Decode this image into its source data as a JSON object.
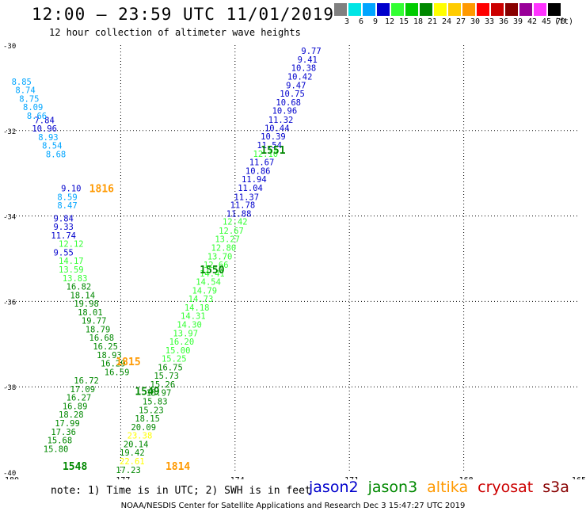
{
  "header": {
    "title": "12:00 – 23:59 UTC 11/01/2019",
    "subtitle": "12 hour collection of altimeter wave heights"
  },
  "legend": {
    "unit": "(ft)",
    "entries": [
      {
        "label": "3",
        "color": "#808080"
      },
      {
        "label": "6",
        "color": "#00e5e5"
      },
      {
        "label": "9",
        "color": "#00a5ff"
      },
      {
        "label": "12",
        "color": "#0000cc"
      },
      {
        "label": "15",
        "color": "#33ff33"
      },
      {
        "label": "18",
        "color": "#00cc00"
      },
      {
        "label": "21",
        "color": "#008800"
      },
      {
        "label": "24",
        "color": "#ffff00"
      },
      {
        "label": "27",
        "color": "#ffcc00"
      },
      {
        "label": "30",
        "color": "#ff9900"
      },
      {
        "label": "33",
        "color": "#ff0000"
      },
      {
        "label": "36",
        "color": "#cc0000"
      },
      {
        "label": "39",
        "color": "#880000"
      },
      {
        "label": "42",
        "color": "#990099"
      },
      {
        "label": "45",
        "color": "#ff33ff"
      },
      {
        "label": "70",
        "color": "#000000"
      }
    ]
  },
  "chart_data": {
    "type": "scatter",
    "title": "12:00 – 23:59 UTC 11/01/2019",
    "subtitle": "12 hour collection of altimeter wave heights",
    "xlim": [
      -180,
      -165
    ],
    "ylim": [
      -40,
      -30
    ],
    "x_ticks": [
      "-180",
      "-177",
      "-174",
      "-171",
      "-168",
      "-165"
    ],
    "y_ticks": [
      "-30",
      "-32",
      "-34",
      "-36",
      "-38",
      "-40"
    ],
    "grid": true,
    "track_labels": [
      {
        "text": "1551",
        "x": -173.0,
        "y": -32.45,
        "color": "#008800"
      },
      {
        "text": "1816",
        "x": -177.5,
        "y": -33.35,
        "color": "#ff9900"
      },
      {
        "text": "1550",
        "x": -174.6,
        "y": -35.25,
        "color": "#008800"
      },
      {
        "text": "1815",
        "x": -176.8,
        "y": -37.4,
        "color": "#ff9900"
      },
      {
        "text": "1549",
        "x": -176.3,
        "y": -38.1,
        "color": "#008800"
      },
      {
        "text": "1548",
        "x": -178.2,
        "y": -39.85,
        "color": "#008800"
      },
      {
        "text": "1814",
        "x": -175.5,
        "y": -39.85,
        "color": "#ff9900"
      }
    ],
    "series": [
      {
        "name": "jason2",
        "color": "#0000cc",
        "points": [
          {
            "x": -172.0,
            "y": -30.13,
            "v": "9.77"
          },
          {
            "x": -172.1,
            "y": -30.33,
            "v": "9.41"
          },
          {
            "x": -172.2,
            "y": -30.53,
            "v": "10.38"
          },
          {
            "x": -172.3,
            "y": -30.73,
            "v": "10.42"
          },
          {
            "x": -172.4,
            "y": -30.94,
            "v": "9.47"
          },
          {
            "x": -172.5,
            "y": -31.13,
            "v": "10.75"
          },
          {
            "x": -172.6,
            "y": -31.34,
            "v": "10.68"
          },
          {
            "x": -172.7,
            "y": -31.53,
            "v": "10.96"
          },
          {
            "x": -172.8,
            "y": -31.74,
            "v": "11.32"
          },
          {
            "x": -172.9,
            "y": -31.94,
            "v": "10.44"
          },
          {
            "x": -173.0,
            "y": -32.13,
            "v": "10.39"
          },
          {
            "x": -173.1,
            "y": -32.34,
            "v": "11.54"
          },
          {
            "x": -173.3,
            "y": -32.74,
            "v": "11.67"
          },
          {
            "x": -173.4,
            "y": -32.94,
            "v": "10.86"
          },
          {
            "x": -173.5,
            "y": -33.14,
            "v": "11.94"
          },
          {
            "x": -173.6,
            "y": -33.34,
            "v": "11.04"
          },
          {
            "x": -173.7,
            "y": -33.55,
            "v": "11.37"
          },
          {
            "x": -173.8,
            "y": -33.74,
            "v": "11.78"
          },
          {
            "x": -173.9,
            "y": -33.94,
            "v": "11.88"
          },
          {
            "x": -179.0,
            "y": -31.75,
            "v": "7.84"
          },
          {
            "x": -179.0,
            "y": -31.95,
            "v": "10.96"
          },
          {
            "x": -178.3,
            "y": -33.35,
            "v": "9.10"
          },
          {
            "x": -178.5,
            "y": -34.05,
            "v": "9.84"
          },
          {
            "x": -178.5,
            "y": -34.25,
            "v": "9.33"
          },
          {
            "x": -178.5,
            "y": -34.45,
            "v": "11.74"
          },
          {
            "x": -178.5,
            "y": -34.85,
            "v": "9.55"
          }
        ]
      },
      {
        "name": "jason3",
        "color": "#33ff33",
        "points": [
          {
            "x": -173.2,
            "y": -32.54,
            "v": "12.10"
          },
          {
            "x": -174.0,
            "y": -34.13,
            "v": "12.42"
          },
          {
            "x": -174.1,
            "y": -34.34,
            "v": "12.67"
          },
          {
            "x": -174.2,
            "y": -34.54,
            "v": "13.27"
          },
          {
            "x": -174.3,
            "y": -34.74,
            "v": "12.80"
          },
          {
            "x": -174.4,
            "y": -34.94,
            "v": "13.70"
          },
          {
            "x": -174.5,
            "y": -35.14,
            "v": "12.66"
          },
          {
            "x": -174.6,
            "y": -35.34,
            "v": "14.41"
          },
          {
            "x": -174.7,
            "y": -35.54,
            "v": "14.54"
          },
          {
            "x": -174.8,
            "y": -35.74,
            "v": "14.79"
          },
          {
            "x": -174.9,
            "y": -35.94,
            "v": "14.73"
          },
          {
            "x": -175.0,
            "y": -36.14,
            "v": "14.18"
          },
          {
            "x": -175.1,
            "y": -36.34,
            "v": "14.31"
          },
          {
            "x": -175.2,
            "y": -36.54,
            "v": "14.30"
          },
          {
            "x": -175.3,
            "y": -36.74,
            "v": "13.97"
          },
          {
            "x": -175.4,
            "y": -36.94,
            "v": "16.20"
          },
          {
            "x": -175.5,
            "y": -37.14,
            "v": "15.00"
          },
          {
            "x": -175.6,
            "y": -37.34,
            "v": "15.25"
          },
          {
            "x": -178.3,
            "y": -34.65,
            "v": "12.12"
          },
          {
            "x": -178.3,
            "y": -35.05,
            "v": "14.17"
          },
          {
            "x": -178.3,
            "y": -35.25,
            "v": "13.59"
          },
          {
            "x": -178.2,
            "y": -35.45,
            "v": "13.83"
          }
        ]
      },
      {
        "name": "jason3",
        "color": "#008800",
        "points": [
          {
            "x": -175.7,
            "y": -37.54,
            "v": "16.75"
          },
          {
            "x": -175.8,
            "y": -37.74,
            "v": "15.73"
          },
          {
            "x": -175.9,
            "y": -37.94,
            "v": "15.26"
          },
          {
            "x": -176.0,
            "y": -38.14,
            "v": "15.97"
          },
          {
            "x": -176.1,
            "y": -38.34,
            "v": "15.83"
          },
          {
            "x": -176.2,
            "y": -38.54,
            "v": "15.23"
          },
          {
            "x": -176.3,
            "y": -38.74,
            "v": "18.15"
          },
          {
            "x": -176.4,
            "y": -38.94,
            "v": "20.09"
          },
          {
            "x": -176.6,
            "y": -39.34,
            "v": "20.14"
          },
          {
            "x": -176.7,
            "y": -39.54,
            "v": "19.42"
          },
          {
            "x": -176.8,
            "y": -39.94,
            "v": "17.23"
          },
          {
            "x": -178.1,
            "y": -35.65,
            "v": "16.82"
          },
          {
            "x": -178.0,
            "y": -35.85,
            "v": "18.14"
          },
          {
            "x": -177.9,
            "y": -36.05,
            "v": "19.98"
          },
          {
            "x": -177.8,
            "y": -36.25,
            "v": "18.01"
          },
          {
            "x": -177.7,
            "y": -36.45,
            "v": "19.77"
          },
          {
            "x": -177.6,
            "y": -36.65,
            "v": "18.79"
          },
          {
            "x": -177.5,
            "y": -36.85,
            "v": "16.68"
          },
          {
            "x": -177.4,
            "y": -37.05,
            "v": "16.25"
          },
          {
            "x": -177.3,
            "y": -37.25,
            "v": "18.93"
          },
          {
            "x": -177.2,
            "y": -37.45,
            "v": "16.29"
          },
          {
            "x": -177.1,
            "y": -37.65,
            "v": "16.59"
          },
          {
            "x": -177.9,
            "y": -37.85,
            "v": "16.72"
          },
          {
            "x": -178.0,
            "y": -38.05,
            "v": "17.09"
          },
          {
            "x": -178.1,
            "y": -38.25,
            "v": "16.27"
          },
          {
            "x": -178.2,
            "y": -38.45,
            "v": "16.89"
          },
          {
            "x": -178.3,
            "y": -38.65,
            "v": "18.28"
          },
          {
            "x": -178.4,
            "y": -38.85,
            "v": "17.99"
          },
          {
            "x": -178.5,
            "y": -39.05,
            "v": "17.36"
          },
          {
            "x": -178.6,
            "y": -39.25,
            "v": "15.68"
          },
          {
            "x": -178.7,
            "y": -39.45,
            "v": "15.80"
          }
        ]
      },
      {
        "name": "altika",
        "color": "#00a5ff",
        "points": [
          {
            "x": -179.6,
            "y": -30.85,
            "v": "8.85"
          },
          {
            "x": -179.5,
            "y": -31.05,
            "v": "8.74"
          },
          {
            "x": -179.4,
            "y": -31.25,
            "v": "8.75"
          },
          {
            "x": -179.3,
            "y": -31.45,
            "v": "8.09"
          },
          {
            "x": -179.2,
            "y": -31.65,
            "v": "8.66"
          },
          {
            "x": -178.9,
            "y": -32.15,
            "v": "8.93"
          },
          {
            "x": -178.8,
            "y": -32.35,
            "v": "8.54"
          },
          {
            "x": -178.7,
            "y": -32.55,
            "v": "8.68"
          },
          {
            "x": -178.4,
            "y": -33.55,
            "v": "8.59"
          },
          {
            "x": -178.4,
            "y": -33.75,
            "v": "8.47"
          }
        ]
      },
      {
        "name": "altika",
        "color": "#ffff00",
        "points": [
          {
            "x": -176.5,
            "y": -39.14,
            "v": "23.38"
          },
          {
            "x": -176.7,
            "y": -39.74,
            "v": "22.61"
          }
        ]
      }
    ]
  },
  "note": "note: 1) Time is in UTC; 2) SWH is in feet",
  "satellites": [
    {
      "name": "jason2",
      "color": "#0000cc"
    },
    {
      "name": "jason3",
      "color": "#008800"
    },
    {
      "name": "altika",
      "color": "#ff9900"
    },
    {
      "name": "cryosat",
      "color": "#cc0000"
    },
    {
      "name": "s3a",
      "color": "#880000"
    }
  ],
  "footer": "NOAA/NESDIS Center for Satellite Applications and Research   Dec  3 15:47:27 UTC 2019"
}
